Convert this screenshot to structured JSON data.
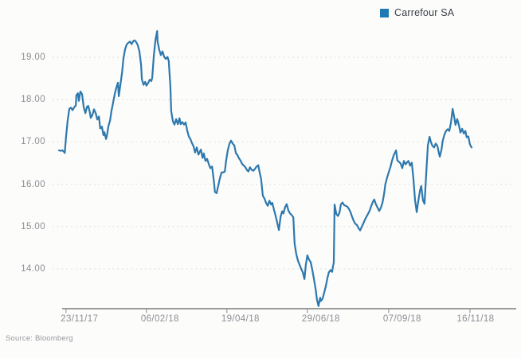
{
  "legend": {
    "label": "Carrefour SA",
    "marker_color": "#1e78b4"
  },
  "source_note": "Source: Bloomberg",
  "chart_data": {
    "type": "line",
    "title": "",
    "legend_position": "top-right",
    "grid": {
      "orientation": "horizontal",
      "style": "dotted",
      "color": "#d8d8d5"
    },
    "axis_color": "#9b9b99",
    "label_color": "#8b8e93",
    "x_axis": {
      "ticks": [
        {
          "label": "23/11/17",
          "pos": 0.017
        },
        {
          "label": "06/02/18",
          "pos": 0.212
        },
        {
          "label": "19/04/18",
          "pos": 0.407
        },
        {
          "label": "29/06/18",
          "pos": 0.602
        },
        {
          "label": "07/09/18",
          "pos": 0.799
        },
        {
          "label": "16/11/18",
          "pos": 0.996
        }
      ]
    },
    "y_axis": {
      "ticks": [
        {
          "label": "19.00",
          "value": 19
        },
        {
          "label": "18.00",
          "value": 18
        },
        {
          "label": "17.00",
          "value": 17
        },
        {
          "label": "16.00",
          "value": 16
        },
        {
          "label": "15.00",
          "value": 15
        },
        {
          "label": "14.00",
          "value": 14
        }
      ],
      "visible_range": [
        13.05,
        19.75
      ]
    },
    "series": [
      {
        "name": "Carrefour SA",
        "color": "#2d78ad",
        "points": [
          [
            0.0,
            16.8
          ],
          [
            0.004,
            16.79
          ],
          [
            0.008,
            16.8
          ],
          [
            0.012,
            16.77
          ],
          [
            0.014,
            16.74
          ],
          [
            0.017,
            17.1
          ],
          [
            0.021,
            17.5
          ],
          [
            0.025,
            17.78
          ],
          [
            0.029,
            17.81
          ],
          [
            0.033,
            17.75
          ],
          [
            0.037,
            17.82
          ],
          [
            0.041,
            17.86
          ],
          [
            0.042,
            18.1
          ],
          [
            0.046,
            18.15
          ],
          [
            0.048,
            17.97
          ],
          [
            0.052,
            18.19
          ],
          [
            0.056,
            18.13
          ],
          [
            0.06,
            17.82
          ],
          [
            0.064,
            17.68
          ],
          [
            0.068,
            17.83
          ],
          [
            0.071,
            17.85
          ],
          [
            0.075,
            17.7
          ],
          [
            0.077,
            17.57
          ],
          [
            0.081,
            17.64
          ],
          [
            0.085,
            17.77
          ],
          [
            0.089,
            17.68
          ],
          [
            0.093,
            17.53
          ],
          [
            0.097,
            17.6
          ],
          [
            0.1,
            17.32
          ],
          [
            0.104,
            17.36
          ],
          [
            0.108,
            17.16
          ],
          [
            0.11,
            17.23
          ],
          [
            0.114,
            17.07
          ],
          [
            0.116,
            17.14
          ],
          [
            0.12,
            17.38
          ],
          [
            0.124,
            17.51
          ],
          [
            0.127,
            17.72
          ],
          [
            0.131,
            17.92
          ],
          [
            0.135,
            18.12
          ],
          [
            0.139,
            18.28
          ],
          [
            0.143,
            18.4
          ],
          [
            0.145,
            18.08
          ],
          [
            0.149,
            18.36
          ],
          [
            0.153,
            18.65
          ],
          [
            0.156,
            18.95
          ],
          [
            0.16,
            19.18
          ],
          [
            0.164,
            19.3
          ],
          [
            0.168,
            19.34
          ],
          [
            0.172,
            19.37
          ],
          [
            0.176,
            19.31
          ],
          [
            0.18,
            19.38
          ],
          [
            0.183,
            19.4
          ],
          [
            0.187,
            19.36
          ],
          [
            0.191,
            19.29
          ],
          [
            0.195,
            19.14
          ],
          [
            0.199,
            18.82
          ],
          [
            0.201,
            18.48
          ],
          [
            0.205,
            18.35
          ],
          [
            0.209,
            18.42
          ],
          [
            0.212,
            18.33
          ],
          [
            0.216,
            18.39
          ],
          [
            0.22,
            18.47
          ],
          [
            0.224,
            18.44
          ],
          [
            0.226,
            18.52
          ],
          [
            0.23,
            19.04
          ],
          [
            0.234,
            19.42
          ],
          [
            0.238,
            19.62
          ],
          [
            0.239,
            19.37
          ],
          [
            0.243,
            19.18
          ],
          [
            0.247,
            19.05
          ],
          [
            0.251,
            19.14
          ],
          [
            0.255,
            19.01
          ],
          [
            0.259,
            18.96
          ],
          [
            0.263,
            19.01
          ],
          [
            0.266,
            18.92
          ],
          [
            0.27,
            18.3
          ],
          [
            0.272,
            17.73
          ],
          [
            0.276,
            17.49
          ],
          [
            0.28,
            17.41
          ],
          [
            0.284,
            17.54
          ],
          [
            0.288,
            17.42
          ],
          [
            0.292,
            17.56
          ],
          [
            0.295,
            17.42
          ],
          [
            0.299,
            17.47
          ],
          [
            0.303,
            17.41
          ],
          [
            0.307,
            17.46
          ],
          [
            0.311,
            17.26
          ],
          [
            0.315,
            17.12
          ],
          [
            0.319,
            17.06
          ],
          [
            0.322,
            16.98
          ],
          [
            0.326,
            16.9
          ],
          [
            0.33,
            16.75
          ],
          [
            0.334,
            16.87
          ],
          [
            0.338,
            16.7
          ],
          [
            0.344,
            16.82
          ],
          [
            0.348,
            16.62
          ],
          [
            0.351,
            16.73
          ],
          [
            0.355,
            16.55
          ],
          [
            0.359,
            16.6
          ],
          [
            0.363,
            16.48
          ],
          [
            0.367,
            16.38
          ],
          [
            0.371,
            16.42
          ],
          [
            0.375,
            16.1
          ],
          [
            0.378,
            15.82
          ],
          [
            0.382,
            15.79
          ],
          [
            0.386,
            15.96
          ],
          [
            0.39,
            16.14
          ],
          [
            0.394,
            16.28
          ],
          [
            0.398,
            16.28
          ],
          [
            0.402,
            16.3
          ],
          [
            0.405,
            16.55
          ],
          [
            0.409,
            16.8
          ],
          [
            0.413,
            16.95
          ],
          [
            0.417,
            17.03
          ],
          [
            0.421,
            16.96
          ],
          [
            0.425,
            16.92
          ],
          [
            0.429,
            16.73
          ],
          [
            0.432,
            16.7
          ],
          [
            0.436,
            16.62
          ],
          [
            0.44,
            16.56
          ],
          [
            0.444,
            16.48
          ],
          [
            0.448,
            16.44
          ],
          [
            0.452,
            16.4
          ],
          [
            0.456,
            16.33
          ],
          [
            0.459,
            16.3
          ],
          [
            0.463,
            16.4
          ],
          [
            0.467,
            16.34
          ],
          [
            0.471,
            16.32
          ],
          [
            0.475,
            16.36
          ],
          [
            0.479,
            16.42
          ],
          [
            0.483,
            16.45
          ],
          [
            0.486,
            16.3
          ],
          [
            0.49,
            16.12
          ],
          [
            0.494,
            15.73
          ],
          [
            0.498,
            15.66
          ],
          [
            0.502,
            15.56
          ],
          [
            0.506,
            15.49
          ],
          [
            0.51,
            15.61
          ],
          [
            0.514,
            15.52
          ],
          [
            0.517,
            15.56
          ],
          [
            0.521,
            15.4
          ],
          [
            0.525,
            15.26
          ],
          [
            0.529,
            15.09
          ],
          [
            0.533,
            14.92
          ],
          [
            0.537,
            15.23
          ],
          [
            0.541,
            15.36
          ],
          [
            0.544,
            15.31
          ],
          [
            0.548,
            15.46
          ],
          [
            0.552,
            15.53
          ],
          [
            0.556,
            15.38
          ],
          [
            0.56,
            15.31
          ],
          [
            0.564,
            15.27
          ],
          [
            0.568,
            15.22
          ],
          [
            0.571,
            14.6
          ],
          [
            0.575,
            14.36
          ],
          [
            0.579,
            14.2
          ],
          [
            0.583,
            14.1
          ],
          [
            0.587,
            14.0
          ],
          [
            0.591,
            13.92
          ],
          [
            0.595,
            13.76
          ],
          [
            0.598,
            14.08
          ],
          [
            0.602,
            14.32
          ],
          [
            0.606,
            14.22
          ],
          [
            0.61,
            14.16
          ],
          [
            0.614,
            13.97
          ],
          [
            0.618,
            13.76
          ],
          [
            0.622,
            13.52
          ],
          [
            0.625,
            13.28
          ],
          [
            0.629,
            13.12
          ],
          [
            0.633,
            13.32
          ],
          [
            0.635,
            13.24
          ],
          [
            0.639,
            13.3
          ],
          [
            0.643,
            13.45
          ],
          [
            0.647,
            13.6
          ],
          [
            0.651,
            13.8
          ],
          [
            0.654,
            13.92
          ],
          [
            0.658,
            13.97
          ],
          [
            0.662,
            13.93
          ],
          [
            0.664,
            14.06
          ],
          [
            0.666,
            14.15
          ],
          [
            0.668,
            15.52
          ],
          [
            0.672,
            15.3
          ],
          [
            0.676,
            15.25
          ],
          [
            0.68,
            15.33
          ],
          [
            0.683,
            15.52
          ],
          [
            0.687,
            15.57
          ],
          [
            0.691,
            15.51
          ],
          [
            0.695,
            15.49
          ],
          [
            0.699,
            15.47
          ],
          [
            0.703,
            15.41
          ],
          [
            0.707,
            15.33
          ],
          [
            0.71,
            15.24
          ],
          [
            0.714,
            15.14
          ],
          [
            0.718,
            15.07
          ],
          [
            0.722,
            15.04
          ],
          [
            0.726,
            14.96
          ],
          [
            0.73,
            14.91
          ],
          [
            0.734,
            15.0
          ],
          [
            0.737,
            15.06
          ],
          [
            0.741,
            15.15
          ],
          [
            0.745,
            15.23
          ],
          [
            0.749,
            15.3
          ],
          [
            0.753,
            15.38
          ],
          [
            0.757,
            15.49
          ],
          [
            0.761,
            15.59
          ],
          [
            0.764,
            15.64
          ],
          [
            0.768,
            15.53
          ],
          [
            0.772,
            15.45
          ],
          [
            0.776,
            15.37
          ],
          [
            0.78,
            15.44
          ],
          [
            0.784,
            15.56
          ],
          [
            0.788,
            15.78
          ],
          [
            0.791,
            16.0
          ],
          [
            0.795,
            16.15
          ],
          [
            0.799,
            16.28
          ],
          [
            0.803,
            16.4
          ],
          [
            0.807,
            16.55
          ],
          [
            0.811,
            16.68
          ],
          [
            0.815,
            16.76
          ],
          [
            0.817,
            16.8
          ],
          [
            0.82,
            16.56
          ],
          [
            0.824,
            16.53
          ],
          [
            0.828,
            16.49
          ],
          [
            0.832,
            16.38
          ],
          [
            0.836,
            16.55
          ],
          [
            0.84,
            16.47
          ],
          [
            0.844,
            16.52
          ],
          [
            0.847,
            16.55
          ],
          [
            0.851,
            16.44
          ],
          [
            0.855,
            16.51
          ],
          [
            0.859,
            16.12
          ],
          [
            0.863,
            15.62
          ],
          [
            0.867,
            15.34
          ],
          [
            0.871,
            15.62
          ],
          [
            0.875,
            15.86
          ],
          [
            0.878,
            15.96
          ],
          [
            0.882,
            15.62
          ],
          [
            0.886,
            15.54
          ],
          [
            0.89,
            16.24
          ],
          [
            0.894,
            16.92
          ],
          [
            0.898,
            17.12
          ],
          [
            0.902,
            16.98
          ],
          [
            0.905,
            16.91
          ],
          [
            0.909,
            16.87
          ],
          [
            0.913,
            16.96
          ],
          [
            0.917,
            16.91
          ],
          [
            0.921,
            16.72
          ],
          [
            0.923,
            16.65
          ],
          [
            0.927,
            16.82
          ],
          [
            0.93,
            17.02
          ],
          [
            0.934,
            17.17
          ],
          [
            0.938,
            17.26
          ],
          [
            0.942,
            17.3
          ],
          [
            0.946,
            17.26
          ],
          [
            0.95,
            17.46
          ],
          [
            0.954,
            17.78
          ],
          [
            0.958,
            17.58
          ],
          [
            0.961,
            17.4
          ],
          [
            0.965,
            17.54
          ],
          [
            0.969,
            17.41
          ],
          [
            0.973,
            17.22
          ],
          [
            0.977,
            17.31
          ],
          [
            0.981,
            17.2
          ],
          [
            0.985,
            17.26
          ],
          [
            0.988,
            17.11
          ],
          [
            0.992,
            17.13
          ],
          [
            0.996,
            16.94
          ],
          [
            1.0,
            16.87
          ]
        ]
      }
    ]
  }
}
